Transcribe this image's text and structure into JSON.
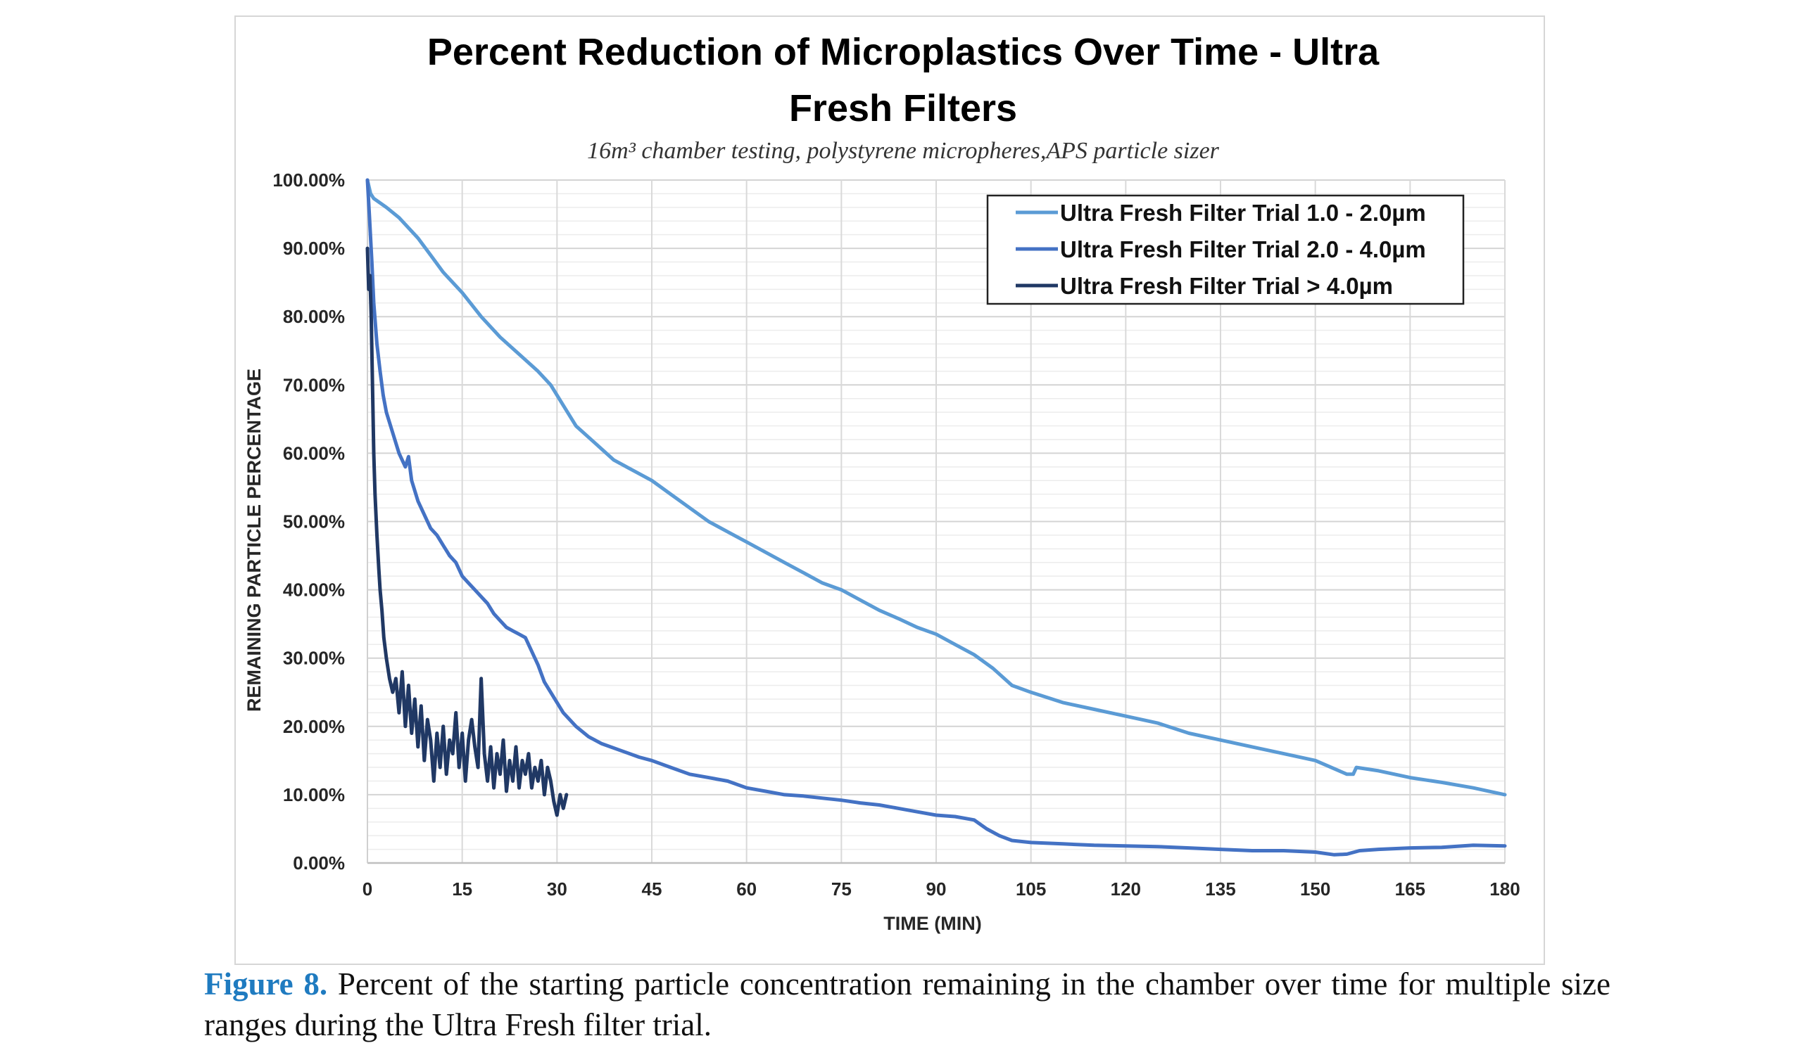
{
  "chart_data": {
    "type": "line",
    "title_lines": [
      "Percent Reduction of Microplastics Over Time - Ultra",
      "Fresh Filters"
    ],
    "subtitle": "16m³ chamber testing, polystyrene micropheres,APS particle sizer",
    "xlabel": "TIME (MIN)",
    "ylabel": "REMAINING PARTICLE PERCENTAGE",
    "xlim": [
      0,
      180
    ],
    "ylim": [
      0,
      100
    ],
    "x_ticks": [
      "0",
      "15",
      "30",
      "45",
      "60",
      "75",
      "90",
      "105",
      "120",
      "135",
      "150",
      "165",
      "180"
    ],
    "x_tick_values": [
      0,
      15,
      30,
      45,
      60,
      75,
      90,
      105,
      120,
      135,
      150,
      165,
      180
    ],
    "y_ticks": [
      "0.00%",
      "10.00%",
      "20.00%",
      "30.00%",
      "40.00%",
      "50.00%",
      "60.00%",
      "70.00%",
      "80.00%",
      "90.00%",
      "100.00%"
    ],
    "y_tick_values": [
      0,
      10,
      20,
      30,
      40,
      50,
      60,
      70,
      80,
      90,
      100
    ],
    "grid": true,
    "legend_position": "top-right",
    "series": [
      {
        "name": "Ultra Fresh Filter Trial 1.0 - 2.0µm",
        "color": "#5b9bd5",
        "points": [
          [
            0,
            100
          ],
          [
            0.5,
            98
          ],
          [
            1,
            97.3
          ],
          [
            3,
            96
          ],
          [
            5,
            94.5
          ],
          [
            8,
            91.5
          ],
          [
            10,
            89
          ],
          [
            12,
            86.5
          ],
          [
            15,
            83.5
          ],
          [
            18,
            80
          ],
          [
            21,
            77
          ],
          [
            24,
            74.5
          ],
          [
            27,
            72
          ],
          [
            29,
            70
          ],
          [
            31,
            67
          ],
          [
            33,
            64
          ],
          [
            36,
            61.5
          ],
          [
            39,
            59
          ],
          [
            42,
            57.5
          ],
          [
            45,
            56
          ],
          [
            48,
            54
          ],
          [
            51,
            52
          ],
          [
            54,
            50
          ],
          [
            57,
            48.5
          ],
          [
            60,
            47
          ],
          [
            63,
            45.5
          ],
          [
            66,
            44
          ],
          [
            69,
            42.5
          ],
          [
            72,
            41
          ],
          [
            75,
            40
          ],
          [
            78,
            38.5
          ],
          [
            81,
            37
          ],
          [
            84,
            35.8
          ],
          [
            87,
            34.5
          ],
          [
            90,
            33.5
          ],
          [
            93,
            32
          ],
          [
            96,
            30.5
          ],
          [
            99,
            28.5
          ],
          [
            102,
            26
          ],
          [
            105,
            25
          ],
          [
            110,
            23.5
          ],
          [
            115,
            22.5
          ],
          [
            120,
            21.5
          ],
          [
            125,
            20.5
          ],
          [
            130,
            19
          ],
          [
            135,
            18
          ],
          [
            140,
            17
          ],
          [
            145,
            16
          ],
          [
            150,
            15
          ],
          [
            152,
            14.2
          ],
          [
            155,
            13
          ],
          [
            156,
            13
          ],
          [
            156.5,
            14
          ],
          [
            160,
            13.5
          ],
          [
            165,
            12.5
          ],
          [
            170,
            11.8
          ],
          [
            175,
            11
          ],
          [
            180,
            10
          ]
        ]
      },
      {
        "name": "Ultra Fresh Filter Trial 2.0 - 4.0µm",
        "color": "#4472c4",
        "points": [
          [
            0,
            100
          ],
          [
            0.3,
            95
          ],
          [
            0.7,
            88
          ],
          [
            1,
            82
          ],
          [
            1.5,
            76
          ],
          [
            2,
            72
          ],
          [
            2.5,
            68.5
          ],
          [
            3,
            66
          ],
          [
            4,
            63
          ],
          [
            5,
            60
          ],
          [
            6,
            58
          ],
          [
            6.5,
            59.5
          ],
          [
            7,
            56
          ],
          [
            8,
            53
          ],
          [
            9,
            51
          ],
          [
            10,
            49
          ],
          [
            11,
            48
          ],
          [
            12,
            46.5
          ],
          [
            13,
            45
          ],
          [
            14,
            44
          ],
          [
            15,
            42
          ],
          [
            16,
            41
          ],
          [
            17,
            40
          ],
          [
            18,
            39
          ],
          [
            19,
            38
          ],
          [
            20,
            36.5
          ],
          [
            21,
            35.5
          ],
          [
            22,
            34.5
          ],
          [
            23,
            34
          ],
          [
            24,
            33.5
          ],
          [
            25,
            33
          ],
          [
            26,
            31
          ],
          [
            27,
            29
          ],
          [
            28,
            26.5
          ],
          [
            29,
            25
          ],
          [
            30,
            23.5
          ],
          [
            31,
            22
          ],
          [
            33,
            20
          ],
          [
            35,
            18.5
          ],
          [
            37,
            17.5
          ],
          [
            40,
            16.5
          ],
          [
            43,
            15.5
          ],
          [
            45,
            15
          ],
          [
            48,
            14
          ],
          [
            51,
            13
          ],
          [
            54,
            12.5
          ],
          [
            57,
            12
          ],
          [
            60,
            11
          ],
          [
            63,
            10.5
          ],
          [
            66,
            10
          ],
          [
            69,
            9.8
          ],
          [
            72,
            9.5
          ],
          [
            75,
            9.2
          ],
          [
            78,
            8.8
          ],
          [
            81,
            8.5
          ],
          [
            84,
            8
          ],
          [
            87,
            7.5
          ],
          [
            90,
            7
          ],
          [
            93,
            6.8
          ],
          [
            96,
            6.3
          ],
          [
            98,
            5
          ],
          [
            100,
            4
          ],
          [
            102,
            3.3
          ],
          [
            105,
            3
          ],
          [
            110,
            2.8
          ],
          [
            115,
            2.6
          ],
          [
            120,
            2.5
          ],
          [
            125,
            2.4
          ],
          [
            130,
            2.2
          ],
          [
            135,
            2
          ],
          [
            140,
            1.8
          ],
          [
            145,
            1.8
          ],
          [
            150,
            1.6
          ],
          [
            153,
            1.2
          ],
          [
            155,
            1.3
          ],
          [
            157,
            1.8
          ],
          [
            160,
            2
          ],
          [
            165,
            2.2
          ],
          [
            170,
            2.3
          ],
          [
            175,
            2.6
          ],
          [
            180,
            2.5
          ]
        ]
      },
      {
        "name": "Ultra Fresh Filter Trial > 4.0µm",
        "color": "#203864",
        "points": [
          [
            0,
            90
          ],
          [
            0.2,
            84
          ],
          [
            0.4,
            86
          ],
          [
            0.6,
            80
          ],
          [
            0.8,
            70
          ],
          [
            1,
            60
          ],
          [
            1.2,
            54
          ],
          [
            1.5,
            48
          ],
          [
            1.8,
            43
          ],
          [
            2,
            40
          ],
          [
            2.3,
            37
          ],
          [
            2.6,
            33
          ],
          [
            3,
            30
          ],
          [
            3.5,
            27
          ],
          [
            4,
            25
          ],
          [
            4.5,
            27
          ],
          [
            5,
            22
          ],
          [
            5.5,
            28
          ],
          [
            6,
            20
          ],
          [
            6.5,
            26
          ],
          [
            7,
            19
          ],
          [
            7.5,
            24
          ],
          [
            8,
            17
          ],
          [
            8.5,
            23
          ],
          [
            9,
            15
          ],
          [
            9.5,
            21
          ],
          [
            10,
            18
          ],
          [
            10.5,
            12
          ],
          [
            11,
            19
          ],
          [
            11.5,
            14
          ],
          [
            12,
            20
          ],
          [
            12.5,
            13
          ],
          [
            13,
            18
          ],
          [
            13.5,
            16
          ],
          [
            14,
            22
          ],
          [
            14.5,
            14
          ],
          [
            15,
            19
          ],
          [
            15.5,
            12
          ],
          [
            16,
            18
          ],
          [
            16.5,
            21
          ],
          [
            17,
            17
          ],
          [
            17.5,
            14
          ],
          [
            18,
            27
          ],
          [
            18.5,
            16
          ],
          [
            19,
            12
          ],
          [
            19.5,
            17
          ],
          [
            20,
            11
          ],
          [
            20.5,
            16
          ],
          [
            21,
            13
          ],
          [
            21.5,
            18
          ],
          [
            22,
            10.5
          ],
          [
            22.5,
            15
          ],
          [
            23,
            12
          ],
          [
            23.5,
            17
          ],
          [
            24,
            11
          ],
          [
            24.5,
            15
          ],
          [
            25,
            13
          ],
          [
            25.5,
            16
          ],
          [
            26,
            11
          ],
          [
            26.5,
            14
          ],
          [
            27,
            12
          ],
          [
            27.5,
            15
          ],
          [
            28,
            10
          ],
          [
            28.5,
            14
          ],
          [
            29,
            12
          ],
          [
            29.5,
            9
          ],
          [
            30,
            7
          ],
          [
            30.5,
            10
          ],
          [
            31,
            8
          ],
          [
            31.5,
            10
          ]
        ]
      }
    ]
  },
  "caption": {
    "label": "Figure 8.",
    "text": " Percent of the starting particle concentration remaining in the chamber over time for multiple size ranges during the Ultra Fresh filter trial."
  }
}
